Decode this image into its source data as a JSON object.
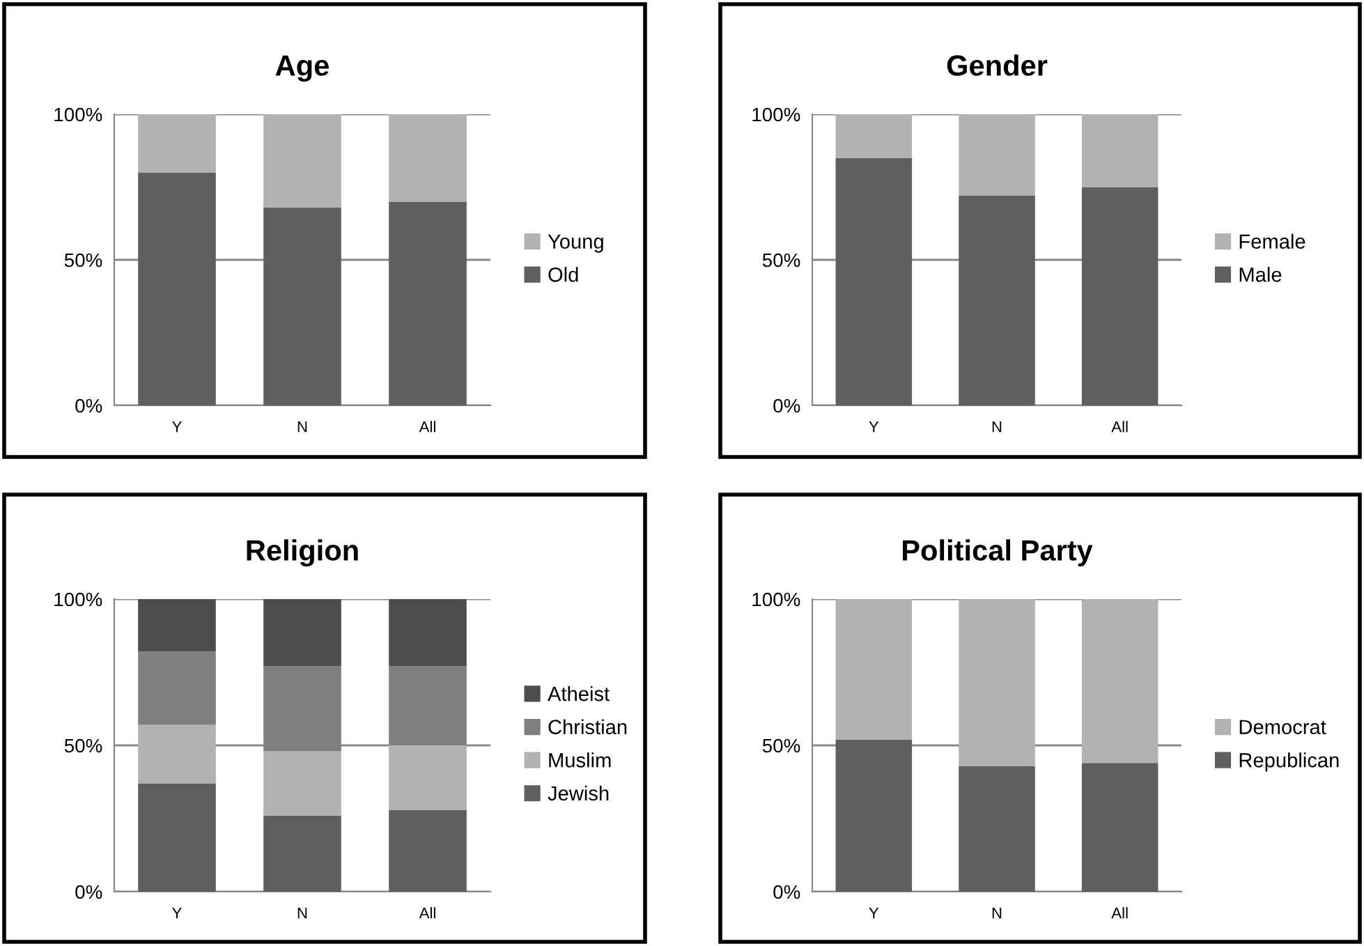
{
  "chart_data": [
    {
      "type": "bar",
      "title": "Age",
      "stacked": true,
      "categories": [
        "Y",
        "N",
        "All"
      ],
      "ylim": [
        0,
        100
      ],
      "yticks": [
        {
          "value": 0,
          "label": "0%"
        },
        {
          "value": 50,
          "label": "50%"
        },
        {
          "value": 100,
          "label": "100%"
        }
      ],
      "grid": "y",
      "legend": "right",
      "series": [
        {
          "name": "Old",
          "color": "#5f5f5f",
          "values": [
            80,
            68,
            70
          ]
        },
        {
          "name": "Young",
          "color": "#b2b2b2",
          "values": [
            20,
            32,
            30
          ]
        }
      ]
    },
    {
      "type": "bar",
      "title": "Gender",
      "stacked": true,
      "categories": [
        "Y",
        "N",
        "All"
      ],
      "ylim": [
        0,
        100
      ],
      "yticks": [
        {
          "value": 0,
          "label": "0%"
        },
        {
          "value": 50,
          "label": "50%"
        },
        {
          "value": 100,
          "label": "100%"
        }
      ],
      "grid": "y",
      "legend": "right",
      "series": [
        {
          "name": "Male",
          "color": "#5f5f5f",
          "values": [
            85,
            72,
            75
          ]
        },
        {
          "name": "Female",
          "color": "#b2b2b2",
          "values": [
            15,
            28,
            25
          ]
        }
      ]
    },
    {
      "type": "bar",
      "title": "Religion",
      "stacked": true,
      "categories": [
        "Y",
        "N",
        "All"
      ],
      "ylim": [
        0,
        100
      ],
      "yticks": [
        {
          "value": 0,
          "label": "0%"
        },
        {
          "value": 50,
          "label": "50%"
        },
        {
          "value": 100,
          "label": "100%"
        }
      ],
      "grid": "y",
      "legend": "right",
      "series": [
        {
          "name": "Jewish",
          "color": "#5f5f5f",
          "values": [
            37,
            26,
            28
          ]
        },
        {
          "name": "Muslim",
          "color": "#b2b2b2",
          "values": [
            20,
            22,
            22
          ]
        },
        {
          "name": "Christian",
          "color": "#7f7f7f",
          "values": [
            25,
            29,
            27
          ]
        },
        {
          "name": "Atheist",
          "color": "#4d4d4d",
          "values": [
            18,
            23,
            23
          ]
        }
      ]
    },
    {
      "type": "bar",
      "title": "Political Party",
      "stacked": true,
      "categories": [
        "Y",
        "N",
        "All"
      ],
      "ylim": [
        0,
        100
      ],
      "yticks": [
        {
          "value": 0,
          "label": "0%"
        },
        {
          "value": 50,
          "label": "50%"
        },
        {
          "value": 100,
          "label": "100%"
        }
      ],
      "grid": "y",
      "legend": "right",
      "series": [
        {
          "name": "Republican",
          "color": "#5f5f5f",
          "values": [
            52,
            43,
            44
          ]
        },
        {
          "name": "Democrat",
          "color": "#b2b2b2",
          "values": [
            48,
            57,
            56
          ]
        }
      ]
    }
  ]
}
